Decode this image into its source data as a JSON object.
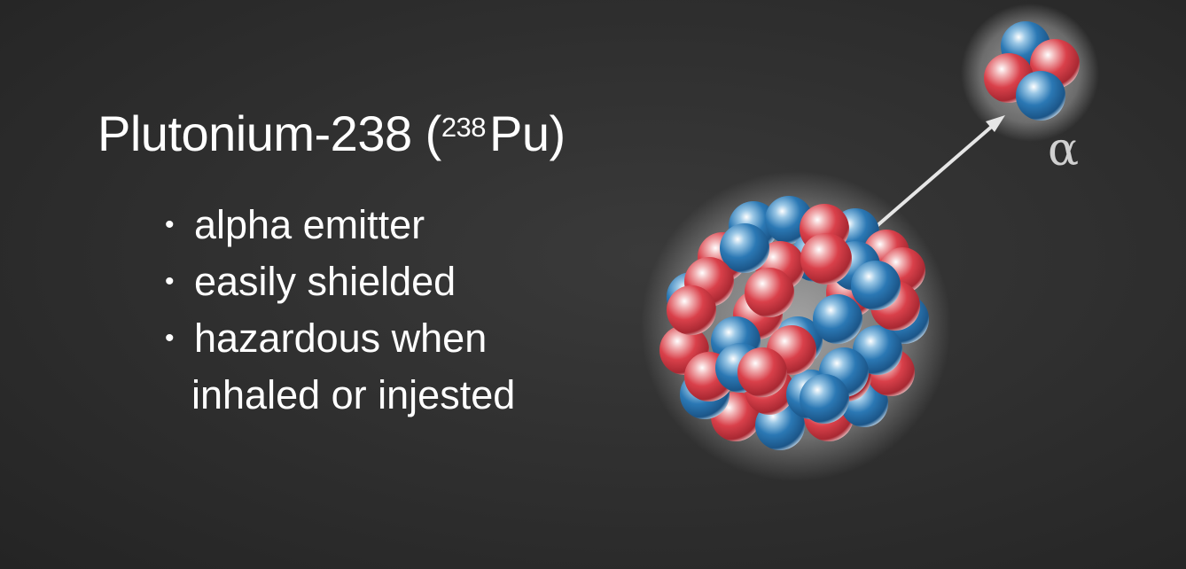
{
  "title": {
    "main": "Plutonium-238 (",
    "mass_number": "238",
    "symbol": "Pu",
    "close": ")"
  },
  "bullets": [
    {
      "text": "alpha emitter"
    },
    {
      "text": "easily shielded"
    },
    {
      "text": "hazardous when",
      "continuation": "inhaled or injested"
    }
  ],
  "bullet_glyph": "•",
  "alpha_label": "α",
  "colors": {
    "proton": "#d9404a",
    "neutron": "#2b78b4",
    "background": "#2e2e2e",
    "text": "#ffffff"
  },
  "icons": {
    "nucleus": "plutonium-nucleus-icon",
    "alpha_particle": "alpha-particle-icon",
    "arrow": "emission-arrow-icon"
  }
}
